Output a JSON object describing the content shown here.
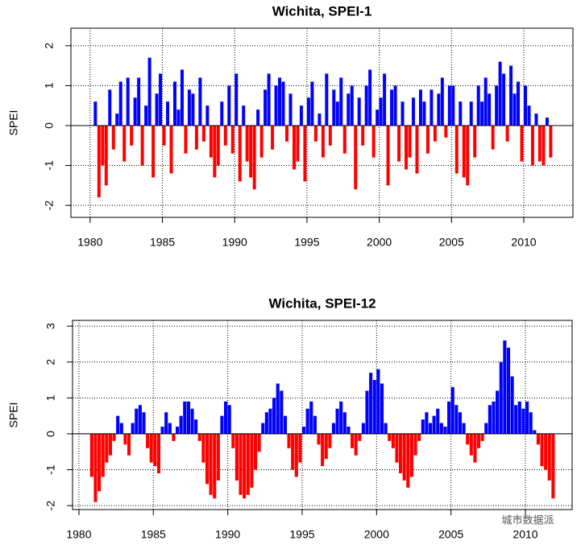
{
  "chart_data": [
    {
      "type": "bar",
      "title": "Wichita, SPEI-1",
      "ylabel": "SPEI",
      "positive_color": "#0000ff",
      "negative_color": "#ff0000",
      "grid": true,
      "xlim": [
        1978.67,
        2013.4
      ],
      "ylim": [
        -2.3,
        2.44
      ],
      "xticks": [
        1980,
        1985,
        1990,
        1995,
        2000,
        2005,
        2010
      ],
      "yticks": [
        -2,
        -1,
        0,
        1,
        2
      ],
      "x": [
        1980,
        1980.25,
        1980.5,
        1980.75,
        1981,
        1981.25,
        1981.5,
        1981.75,
        1982,
        1982.25,
        1982.5,
        1982.75,
        1983,
        1983.25,
        1983.5,
        1983.75,
        1984,
        1984.25,
        1984.5,
        1984.75,
        1985,
        1985.25,
        1985.5,
        1985.75,
        1986,
        1986.25,
        1986.5,
        1986.75,
        1987,
        1987.25,
        1987.5,
        1987.75,
        1988,
        1988.25,
        1988.5,
        1988.75,
        1989,
        1989.25,
        1989.5,
        1989.75,
        1990,
        1990.25,
        1990.5,
        1990.75,
        1991,
        1991.25,
        1991.5,
        1991.75,
        1992,
        1992.25,
        1992.5,
        1992.75,
        1993,
        1993.25,
        1993.5,
        1993.75,
        1994,
        1994.25,
        1994.5,
        1994.75,
        1995,
        1995.25,
        1995.5,
        1995.75,
        1996,
        1996.25,
        1996.5,
        1996.75,
        1997,
        1997.25,
        1997.5,
        1997.75,
        1998,
        1998.25,
        1998.5,
        1998.75,
        1999,
        1999.25,
        1999.5,
        1999.75,
        2000,
        2000.25,
        2000.5,
        2000.75,
        2001,
        2001.25,
        2001.5,
        2001.75,
        2002,
        2002.25,
        2002.5,
        2002.75,
        2003,
        2003.25,
        2003.5,
        2003.75,
        2004,
        2004.25,
        2004.5,
        2004.75,
        2005,
        2005.25,
        2005.5,
        2005.75,
        2006,
        2006.25,
        2006.5,
        2006.75,
        2007,
        2007.25,
        2007.5,
        2007.75,
        2008,
        2008.25,
        2008.5,
        2008.75,
        2009,
        2009.25,
        2009.5,
        2009.75,
        2010,
        2010.25,
        2010.5,
        2010.75,
        2011,
        2011.25,
        2011.5,
        2011.75
      ],
      "values": [
        null,
        0.6,
        -1.8,
        -1.0,
        -1.5,
        0.9,
        -0.6,
        0.3,
        1.1,
        -0.9,
        1.2,
        -0.5,
        0.7,
        1.2,
        -1.0,
        0.5,
        1.7,
        -1.3,
        0.8,
        1.3,
        -0.5,
        0.6,
        -1.2,
        1.1,
        0.4,
        1.4,
        -0.7,
        0.9,
        0.8,
        -0.6,
        1.2,
        -0.4,
        0.5,
        -0.8,
        -1.3,
        -1.0,
        0.6,
        -0.5,
        1.0,
        -0.7,
        1.3,
        -1.4,
        0.5,
        -0.9,
        -1.3,
        -1.6,
        0.4,
        -0.8,
        0.9,
        1.3,
        -0.6,
        1.0,
        1.2,
        1.1,
        -0.4,
        0.8,
        -1.1,
        -0.9,
        0.5,
        -1.4,
        0.7,
        1.1,
        -0.4,
        0.3,
        -0.8,
        1.3,
        -0.5,
        0.9,
        0.6,
        1.2,
        -0.7,
        0.8,
        1.0,
        -1.6,
        0.7,
        -0.5,
        1.0,
        1.4,
        -0.8,
        0.4,
        0.7,
        1.3,
        -1.5,
        0.9,
        1.0,
        -0.9,
        0.6,
        -1.1,
        -0.8,
        0.7,
        -1.2,
        0.9,
        0.6,
        -0.7,
        0.9,
        -0.4,
        0.8,
        1.2,
        -0.3,
        1.0,
        1.0,
        -1.2,
        0.6,
        -1.3,
        -1.5,
        0.6,
        -0.8,
        1.0,
        0.6,
        1.2,
        0.8,
        -0.6,
        1.0,
        1.6,
        1.3,
        -0.4,
        1.5,
        0.8,
        1.1,
        -0.9,
        1.0,
        0.5,
        -1.0,
        0.3,
        -0.9,
        -1.0,
        0.2,
        -0.8
      ]
    },
    {
      "type": "bar",
      "title": "Wichita, SPEI-12",
      "ylabel": "SPEI",
      "positive_color": "#0000ff",
      "negative_color": "#ff0000",
      "grid": true,
      "xlim": [
        1979.57,
        2013.14
      ],
      "ylim": [
        -2.11,
        3.16
      ],
      "xticks": [
        1980,
        1985,
        1990,
        1995,
        2000,
        2005,
        2010
      ],
      "yticks": [
        -2,
        -1,
        0,
        1,
        2,
        3
      ],
      "x": [
        1980,
        1980.25,
        1980.5,
        1980.75,
        1981,
        1981.25,
        1981.5,
        1981.75,
        1982,
        1982.25,
        1982.5,
        1982.75,
        1983,
        1983.25,
        1983.5,
        1983.75,
        1984,
        1984.25,
        1984.5,
        1984.75,
        1985,
        1985.25,
        1985.5,
        1985.75,
        1986,
        1986.25,
        1986.5,
        1986.75,
        1987,
        1987.25,
        1987.5,
        1987.75,
        1988,
        1988.25,
        1988.5,
        1988.75,
        1989,
        1989.25,
        1989.5,
        1989.75,
        1990,
        1990.25,
        1990.5,
        1990.75,
        1991,
        1991.25,
        1991.5,
        1991.75,
        1992,
        1992.25,
        1992.5,
        1992.75,
        1993,
        1993.25,
        1993.5,
        1993.75,
        1994,
        1994.25,
        1994.5,
        1994.75,
        1995,
        1995.25,
        1995.5,
        1995.75,
        1996,
        1996.25,
        1996.5,
        1996.75,
        1997,
        1997.25,
        1997.5,
        1997.75,
        1998,
        1998.25,
        1998.5,
        1998.75,
        1999,
        1999.25,
        1999.5,
        1999.75,
        2000,
        2000.25,
        2000.5,
        2000.75,
        2001,
        2001.25,
        2001.5,
        2001.75,
        2002,
        2002.25,
        2002.5,
        2002.75,
        2003,
        2003.25,
        2003.5,
        2003.75,
        2004,
        2004.25,
        2004.5,
        2004.75,
        2005,
        2005.25,
        2005.5,
        2005.75,
        2006,
        2006.25,
        2006.5,
        2006.75,
        2007,
        2007.25,
        2007.5,
        2007.75,
        2008,
        2008.25,
        2008.5,
        2008.75,
        2009,
        2009.25,
        2009.5,
        2009.75,
        2010,
        2010.25,
        2010.5,
        2010.75,
        2011,
        2011.25,
        2011.5,
        2011.75
      ],
      "values": [
        null,
        null,
        null,
        -1.2,
        -1.9,
        -1.6,
        -1.2,
        -0.8,
        -0.6,
        -0.2,
        0.5,
        0.3,
        -0.3,
        -0.6,
        0.3,
        0.7,
        0.8,
        0.6,
        -0.4,
        -0.8,
        -0.9,
        -1.1,
        0.2,
        0.6,
        0.3,
        -0.2,
        0.2,
        0.5,
        0.9,
        0.9,
        0.7,
        0.4,
        -0.2,
        -0.8,
        -1.4,
        -1.7,
        -1.8,
        -1.3,
        0.5,
        0.9,
        0.8,
        -0.4,
        -1.3,
        -1.7,
        -1.8,
        -1.7,
        -1.5,
        -1.0,
        -0.5,
        0.3,
        0.6,
        0.7,
        1.0,
        1.4,
        1.2,
        0.5,
        -0.4,
        -1.0,
        -1.2,
        -0.8,
        0.2,
        0.7,
        0.9,
        0.5,
        -0.3,
        -0.9,
        -0.7,
        -0.4,
        0.3,
        0.7,
        0.9,
        0.6,
        0.2,
        -0.4,
        -0.6,
        -0.2,
        0.3,
        1.2,
        1.7,
        1.5,
        1.8,
        1.4,
        0.3,
        -0.2,
        -0.4,
        -0.8,
        -1.1,
        -1.3,
        -1.5,
        -1.2,
        -0.6,
        -0.2,
        0.4,
        0.6,
        0.3,
        0.5,
        0.7,
        0.3,
        0.2,
        0.9,
        1.3,
        0.8,
        0.6,
        0.3,
        -0.3,
        -0.6,
        -0.8,
        -0.4,
        -0.2,
        0.3,
        0.8,
        0.9,
        1.2,
        2.0,
        2.6,
        2.4,
        1.6,
        0.8,
        0.9,
        0.7,
        0.9,
        0.6,
        0.1,
        -0.3,
        -0.9,
        -1.0,
        -1.3,
        -1.8
      ]
    }
  ],
  "watermark": "城市数据派"
}
